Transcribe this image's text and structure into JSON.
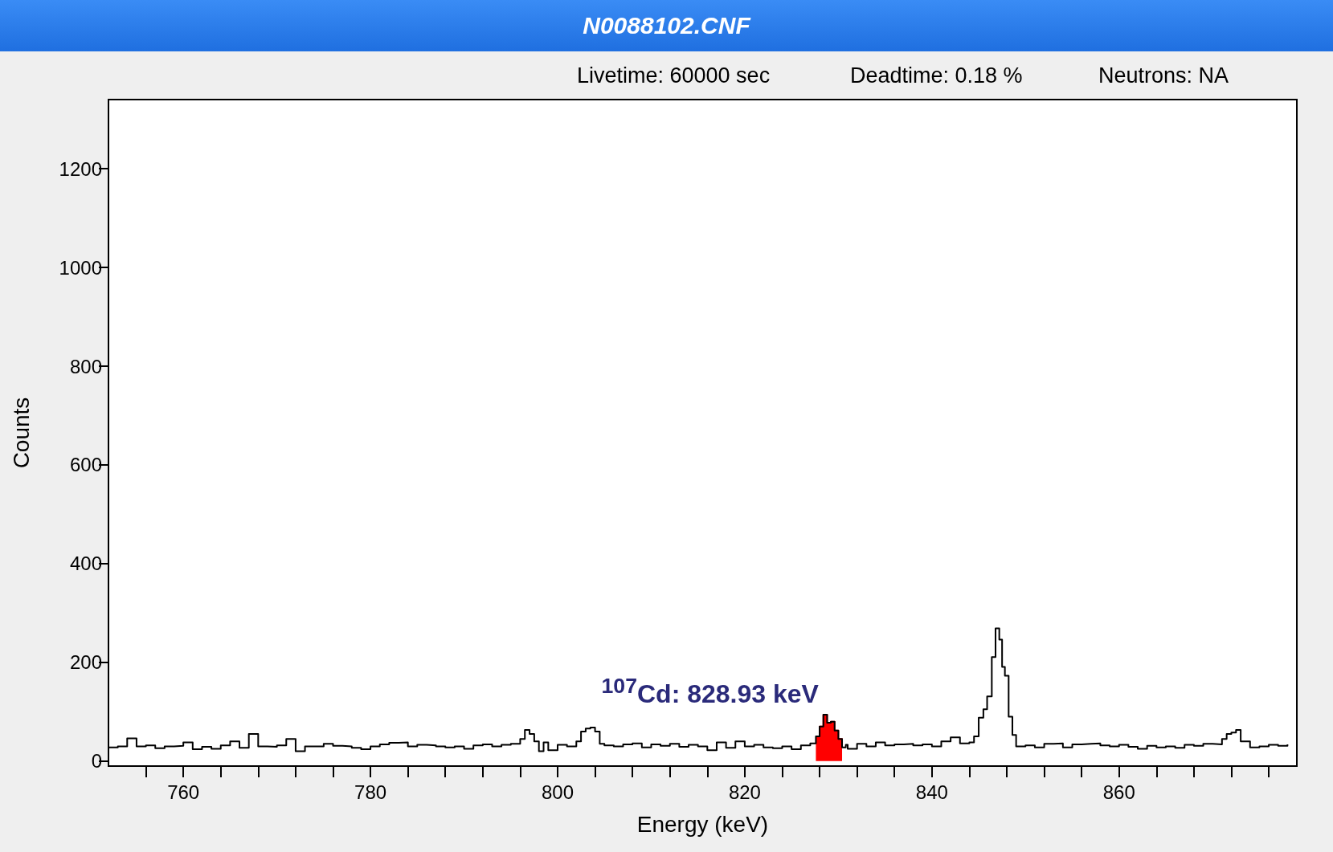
{
  "chart_data": {
    "type": "step",
    "title": "N0088102.CNF",
    "xlabel": "Energy (keV)",
    "ylabel": "Counts",
    "xlim": [
      752,
      879
    ],
    "ylim": [
      -10,
      1340
    ],
    "xticks": [
      {
        "value": 756,
        "label": null
      },
      760,
      {
        "value": 764,
        "label": null
      },
      {
        "value": 768,
        "label": null
      },
      {
        "value": 772,
        "label": null
      },
      {
        "value": 776,
        "label": null
      },
      780,
      {
        "value": 784,
        "label": null
      },
      {
        "value": 788,
        "label": null
      },
      {
        "value": 792,
        "label": null
      },
      {
        "value": 796,
        "label": null
      },
      800,
      {
        "value": 804,
        "label": null
      },
      {
        "value": 808,
        "label": null
      },
      {
        "value": 812,
        "label": null
      },
      {
        "value": 816,
        "label": null
      },
      820,
      {
        "value": 824,
        "label": null
      },
      {
        "value": 828,
        "label": null
      },
      {
        "value": 832,
        "label": null
      },
      {
        "value": 836,
        "label": null
      },
      840,
      {
        "value": 844,
        "label": null
      },
      {
        "value": 848,
        "label": null
      },
      {
        "value": 852,
        "label": null
      },
      {
        "value": 856,
        "label": null
      },
      860,
      {
        "value": 864,
        "label": null
      },
      {
        "value": 868,
        "label": null
      },
      {
        "value": 872,
        "label": null
      },
      {
        "value": 876,
        "label": null
      }
    ],
    "yticks": [
      0,
      200,
      400,
      600,
      800,
      1000,
      1200
    ],
    "grid": false,
    "annotations": [
      "Livetime: 60000 sec",
      "Deadtime: 0.18 %",
      "Neutrons: NA",
      {
        "text": "$^{107}$Cd: 828.93 keV",
        "x": 828.93,
        "y": 94
      }
    ],
    "series": [
      {
        "color": "#000000",
        "x": [
          752,
          753,
          754,
          755,
          756,
          757,
          758,
          759,
          760,
          761,
          762,
          763,
          764,
          765,
          766,
          767,
          768,
          769,
          770,
          771,
          772,
          773,
          774,
          775,
          776,
          777,
          778,
          779,
          780,
          781,
          782,
          783,
          784,
          785,
          786,
          787,
          788,
          789,
          790,
          791,
          792,
          793,
          794,
          795,
          796,
          796.5,
          797,
          797.5,
          798,
          798.5,
          799,
          800,
          801,
          802,
          802.5,
          803,
          803.5,
          804,
          804.5,
          805,
          806,
          807,
          808,
          809,
          810,
          811,
          812,
          813,
          814,
          815,
          816,
          817,
          818,
          819,
          820,
          821,
          822,
          823,
          824,
          825,
          826,
          827,
          827.6,
          828,
          828.4,
          828.8,
          829.2,
          829.6,
          830,
          830.4,
          830.8,
          831,
          832,
          833,
          834,
          835,
          836,
          837,
          838,
          839,
          840,
          841,
          842,
          843,
          844,
          844.5,
          845,
          845.5,
          845.9,
          846.4,
          846.8,
          847.2,
          847.5,
          847.8,
          848.2,
          848.6,
          849,
          850,
          851,
          852,
          853,
          854,
          855,
          856,
          857,
          858,
          859,
          860,
          861,
          862,
          863,
          864,
          865,
          866,
          867,
          868,
          869,
          870,
          871,
          871.5,
          872,
          872.5,
          873,
          874,
          875,
          876,
          877,
          878
        ],
        "values": [
          28,
          30,
          46,
          30,
          32,
          26,
          30,
          31,
          38,
          24,
          29,
          25,
          32,
          40,
          27,
          55,
          30,
          29,
          32,
          45,
          20,
          30,
          30,
          35,
          31,
          30,
          27,
          24,
          30,
          34,
          37,
          38,
          30,
          33,
          32,
          30,
          28,
          30,
          25,
          32,
          34,
          30,
          33,
          35,
          45,
          63,
          55,
          40,
          20,
          38,
          22,
          33,
          30,
          40,
          60,
          66,
          68,
          60,
          35,
          32,
          30,
          34,
          36,
          28,
          34,
          31,
          35,
          29,
          33,
          30,
          22,
          38,
          27,
          40,
          30,
          33,
          28,
          26,
          30,
          24,
          32,
          36,
          50,
          70,
          94,
          78,
          80,
          62,
          45,
          28,
          33,
          25,
          35,
          30,
          38,
          32,
          34,
          35,
          32,
          34,
          30,
          40,
          48,
          36,
          38,
          50,
          88,
          105,
          131,
          211,
          269,
          246,
          191,
          173,
          90,
          53,
          30,
          32,
          28,
          35,
          36,
          28,
          34,
          35,
          36,
          32,
          30,
          33,
          29,
          25,
          31,
          28,
          30,
          27,
          33,
          31,
          35,
          34,
          45,
          55,
          58,
          63,
          40,
          28,
          30,
          33,
          31,
          34
        ]
      },
      {
        "type": "area",
        "color": "#ff0000",
        "x": [
          827.6,
          828,
          828.4,
          828.8,
          829.2,
          829.6,
          830,
          830.4
        ],
        "values": [
          50,
          70,
          94,
          78,
          80,
          62,
          45,
          28
        ]
      }
    ]
  }
}
